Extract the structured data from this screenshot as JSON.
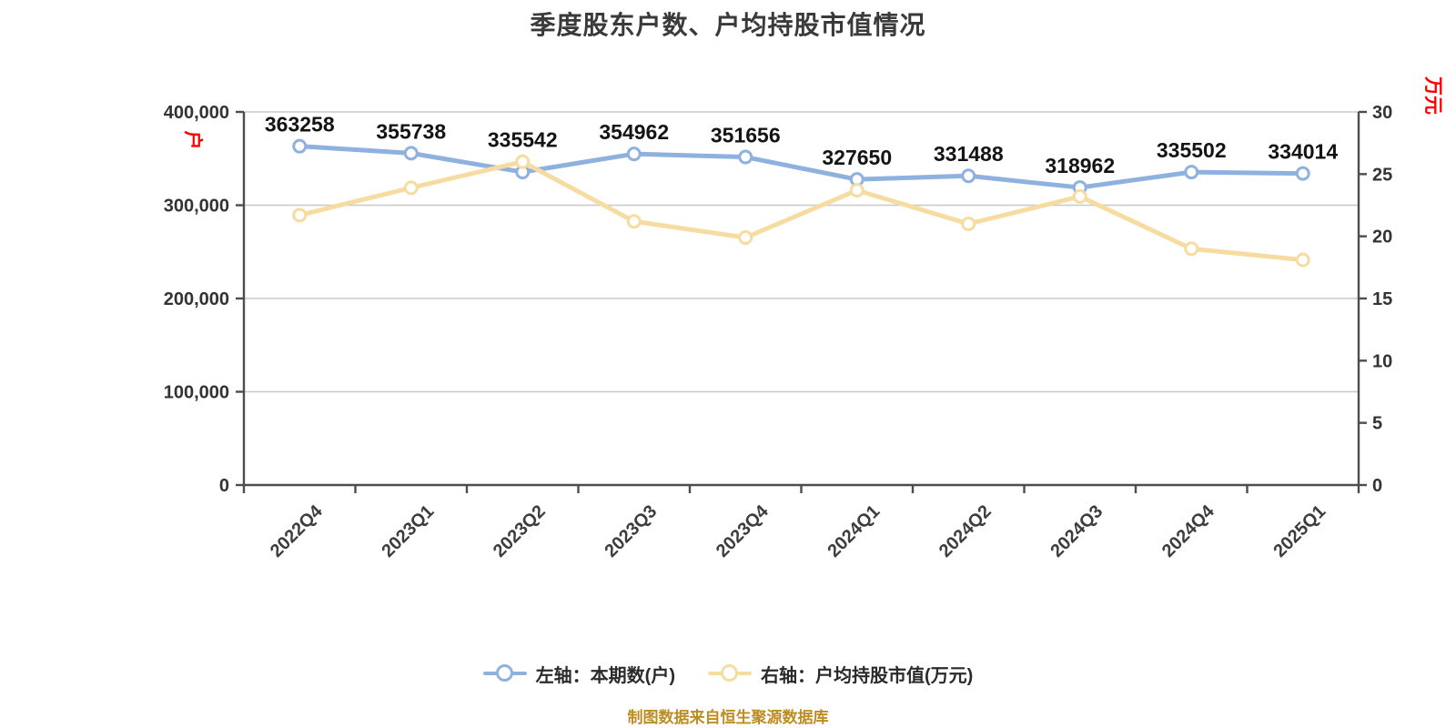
{
  "title": "季度股东户数、户均持股市值情况",
  "footer": "制图数据来自恒生聚源数据库",
  "legend": [
    {
      "label": "左轴：本期数(户)"
    },
    {
      "label": "右轴：户均持股市值(万元)"
    }
  ],
  "colors": {
    "blue_series": "#8FB1DF",
    "yellow_series": "#F7DCA2",
    "marker_fill": "#FFFFFF",
    "grid": "#C8C8C8",
    "axis": "#4D4D4D",
    "tick_label": "#333333",
    "axis_unit_red": "#FF0000",
    "title": "#3A3A3A",
    "data_label": "#141414",
    "footer": "#BE8D22"
  },
  "chart_data": {
    "type": "line",
    "title": "季度股东户数、户均持股市值情况",
    "categories": [
      "2022Q4",
      "2023Q1",
      "2023Q2",
      "2023Q3",
      "2023Q4",
      "2024Q1",
      "2024Q2",
      "2024Q3",
      "2024Q4",
      "2025Q1"
    ],
    "series": [
      {
        "name": "左轴：本期数(户)",
        "axis": "left",
        "color": "#8FB1DF",
        "values": [
          363258,
          355738,
          335542,
          354962,
          351656,
          327650,
          331488,
          318962,
          335502,
          334014
        ],
        "data_labels": true
      },
      {
        "name": "右轴：户均持股市值(万元)",
        "axis": "right",
        "color": "#F7DCA2",
        "values": [
          21.7,
          23.9,
          26.0,
          21.2,
          19.9,
          23.7,
          21.0,
          23.2,
          19.0,
          18.1
        ],
        "data_labels": false
      }
    ],
    "left_axis": {
      "unit_label": "户",
      "min": 0,
      "max": 400000,
      "tick_step": 100000,
      "tick_labels": [
        "0",
        "100,000",
        "200,000",
        "300,000",
        "400,000"
      ]
    },
    "right_axis": {
      "unit_label": "万元",
      "min": 0,
      "max": 30,
      "tick_step": 5,
      "tick_labels": [
        "0",
        "5",
        "10",
        "15",
        "20",
        "25",
        "30"
      ]
    },
    "grid": true,
    "x_label_rotation": -45,
    "legend_position": "bottom"
  }
}
